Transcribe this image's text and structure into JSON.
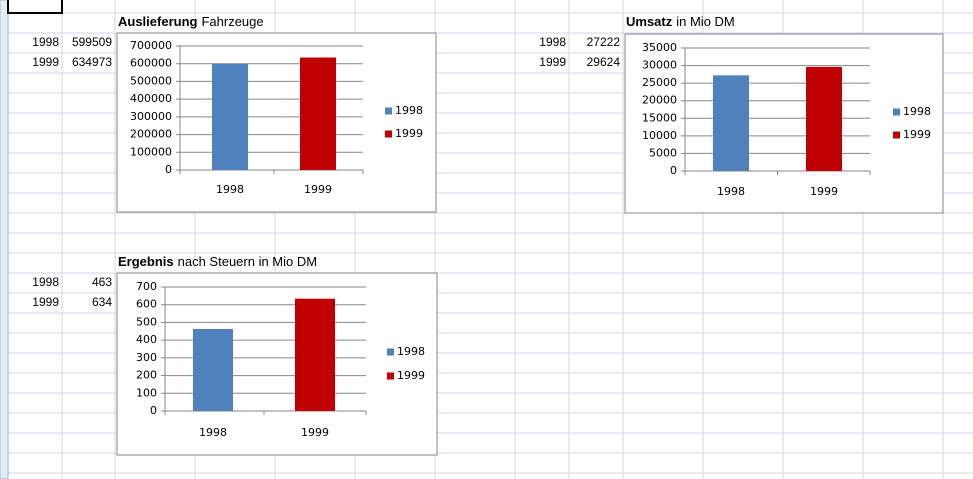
{
  "chart_data": [
    {
      "type": "bar",
      "title": [
        "Auslieferung",
        "Fahrzeuge"
      ],
      "categories": [
        "1998",
        "1999"
      ],
      "values": [
        599509,
        634973
      ],
      "colors": [
        "#4f81bd",
        "#c00000"
      ],
      "ylim": [
        0,
        700000
      ],
      "yticks": [
        0,
        100000,
        200000,
        300000,
        400000,
        500000,
        600000,
        700000
      ],
      "grid": true,
      "legend": "right"
    },
    {
      "type": "bar",
      "title": [
        "Umsatz",
        "in Mio DM"
      ],
      "categories": [
        "1998",
        "1999"
      ],
      "values": [
        27222,
        29624
      ],
      "colors": [
        "#4f81bd",
        "#c00000"
      ],
      "ylim": [
        0,
        35000
      ],
      "yticks": [
        0,
        5000,
        10000,
        15000,
        20000,
        25000,
        30000,
        35000
      ],
      "grid": true,
      "legend": "right"
    },
    {
      "type": "bar",
      "title": [
        "Ergebnis",
        "nach Steuern in Mio DM"
      ],
      "categories": [
        "1998",
        "1999"
      ],
      "values": [
        463,
        634
      ],
      "colors": [
        "#4f81bd",
        "#c00000"
      ],
      "ylim": [
        0,
        700
      ],
      "yticks": [
        0,
        100,
        200,
        300,
        400,
        500,
        600,
        700
      ],
      "grid": true,
      "legend": "right"
    }
  ]
}
